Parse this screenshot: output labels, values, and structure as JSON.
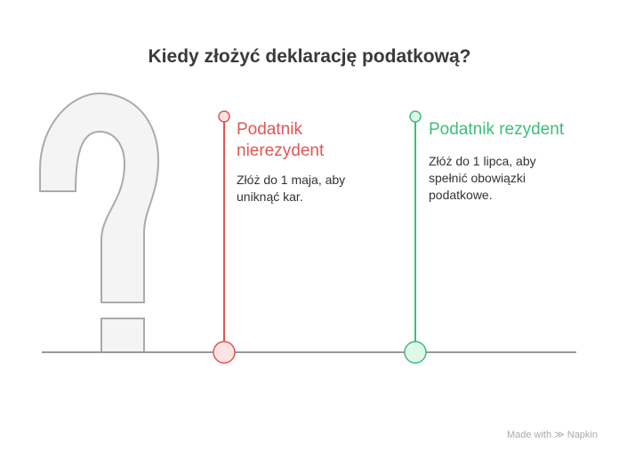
{
  "title": "Kiedy złożyć deklarację podatkową?",
  "items": [
    {
      "heading": "Podatnik nierezydent",
      "heading_line1": "Podatnik",
      "heading_line2": "nierezydent",
      "description": "Złóż do 1 maja, aby uniknąć kar.",
      "desc_line1": "Złóż do 1 maja, aby",
      "desc_line2": "uniknąć kar.",
      "color": "#e05555",
      "fill": "#fde4e4"
    },
    {
      "heading": "Podatnik rezydent",
      "description": "Złóż do 1 lipca, aby spełnić obowiązki podatkowe.",
      "desc_line1": "Złóż do 1 lipca, aby",
      "desc_line2": "spełnić obowiązki",
      "desc_line3": "podatkowe.",
      "color": "#3cbf7a",
      "fill": "#e0f8ea"
    }
  ],
  "footer": {
    "made_with": "Made with",
    "brand": "Napkin",
    "icon": "napkin-logo-icon"
  }
}
